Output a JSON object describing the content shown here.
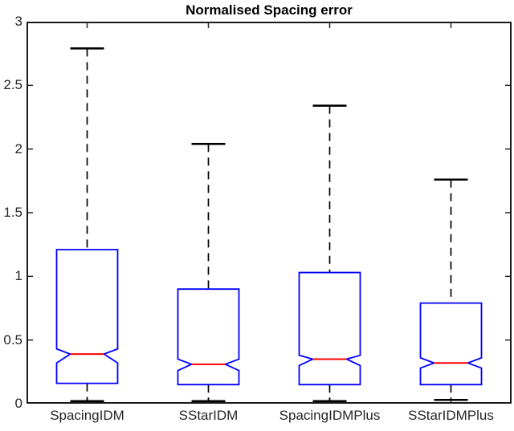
{
  "title": "Normalised Spacing error",
  "chart_data": {
    "type": "boxplot",
    "title": "Normalised Spacing error",
    "notched": true,
    "categories": [
      "SpacingIDM",
      "SStarIDM",
      "SpacingIDMPlus",
      "SStarIDMPlus"
    ],
    "xlabel": "",
    "ylabel": "",
    "ylim": [
      0,
      3
    ],
    "yticks": [
      0,
      0.5,
      1,
      1.5,
      2,
      2.5,
      3
    ],
    "ytick_labels": [
      "0",
      "0.5",
      "1",
      "1.5",
      "2",
      "2.5",
      "3"
    ],
    "grid": false,
    "legend": "none",
    "series": [
      {
        "name": "SpacingIDM",
        "whisker_low": 0.02,
        "q1": 0.16,
        "notch_low": 0.32,
        "median": 0.39,
        "notch_high": 0.43,
        "q3": 1.21,
        "whisker_high": 2.79
      },
      {
        "name": "SStarIDM",
        "whisker_low": 0.02,
        "q1": 0.15,
        "notch_low": 0.26,
        "median": 0.31,
        "notch_high": 0.35,
        "q3": 0.9,
        "whisker_high": 2.04
      },
      {
        "name": "SpacingIDMPlus",
        "whisker_low": 0.02,
        "q1": 0.15,
        "notch_low": 0.3,
        "median": 0.35,
        "notch_high": 0.38,
        "q3": 1.03,
        "whisker_high": 2.34
      },
      {
        "name": "SStarIDMPlus",
        "whisker_low": 0.03,
        "q1": 0.15,
        "notch_low": 0.28,
        "median": 0.32,
        "notch_high": 0.36,
        "q3": 0.79,
        "whisker_high": 1.76
      }
    ],
    "colors": {
      "box": "#0000ff",
      "median": "#ff0000",
      "whisker": "#000000",
      "frame": "#1a1a1a",
      "tick": "#262626",
      "tick_label": "#262626",
      "title": "#000000",
      "background": "#ffffff"
    }
  }
}
